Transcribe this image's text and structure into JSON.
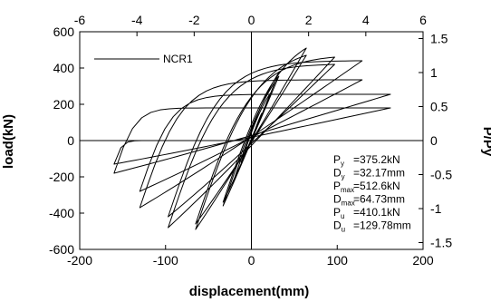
{
  "chart_data": {
    "type": "line",
    "xlabel": "displacement(mm)",
    "ylabel": "load(kN)",
    "y2label": "P/Py",
    "xlim": [
      -200,
      200
    ],
    "ylim": [
      -600,
      600
    ],
    "x2lim": [
      -6,
      6
    ],
    "y2lim": [
      -1.6,
      1.6
    ],
    "xticks": [
      "-200",
      "-100",
      "0",
      "100",
      "200"
    ],
    "x2ticks": [
      "-6",
      "-4",
      "-2",
      "0",
      "2",
      "4",
      "6"
    ],
    "yticks": [
      "-600",
      "-400",
      "-200",
      "0",
      "200",
      "400",
      "600"
    ],
    "y2ticks": [
      "-1.5",
      "-1",
      "-0.5",
      "0",
      "0.5",
      "1",
      "1.5"
    ],
    "legend": {
      "name": "NCR1",
      "position": "top-left"
    },
    "grid": false,
    "params": [
      {
        "sym": "P",
        "sub": "y",
        "val": "=375.2kN"
      },
      {
        "sym": "D",
        "sub": "y",
        "val": "=32.17mm"
      },
      {
        "sym": "P",
        "sub": "max",
        "val": "=512.6kN"
      },
      {
        "sym": "D",
        "sub": "max",
        "val": "=64.73mm"
      },
      {
        "sym": "P",
        "sub": "u",
        "val": "=410.1kN"
      },
      {
        "sym": "D",
        "sub": "u",
        "val": "=129.78mm"
      }
    ],
    "series": [
      {
        "name": "NCR1",
        "loops": [
          {
            "dmin": -12,
            "dmax": 12,
            "pneg": -120,
            "ppos": 150
          },
          {
            "dmin": -22,
            "dmax": 22,
            "pneg": -240,
            "ppos": 260
          },
          {
            "dmin": -33,
            "dmax": 32,
            "pneg": -360,
            "ppos": 375
          },
          {
            "dmin": -33,
            "dmax": 32,
            "pneg": -340,
            "ppos": 355
          },
          {
            "dmin": -65,
            "dmax": 64,
            "pneg": -490,
            "ppos": 510
          },
          {
            "dmin": -65,
            "dmax": 64,
            "pneg": -460,
            "ppos": 470
          },
          {
            "dmin": -97,
            "dmax": 97,
            "pneg": -480,
            "ppos": 460
          },
          {
            "dmin": -97,
            "dmax": 97,
            "pneg": -420,
            "ppos": 420
          },
          {
            "dmin": -130,
            "dmax": 129,
            "pneg": -370,
            "ppos": 440
          },
          {
            "dmin": -130,
            "dmax": 129,
            "pneg": -280,
            "ppos": 335
          },
          {
            "dmin": -160,
            "dmax": 162,
            "pneg": -180,
            "ppos": 255
          },
          {
            "dmin": -160,
            "dmax": 162,
            "pneg": -130,
            "ppos": 180
          }
        ]
      }
    ]
  }
}
